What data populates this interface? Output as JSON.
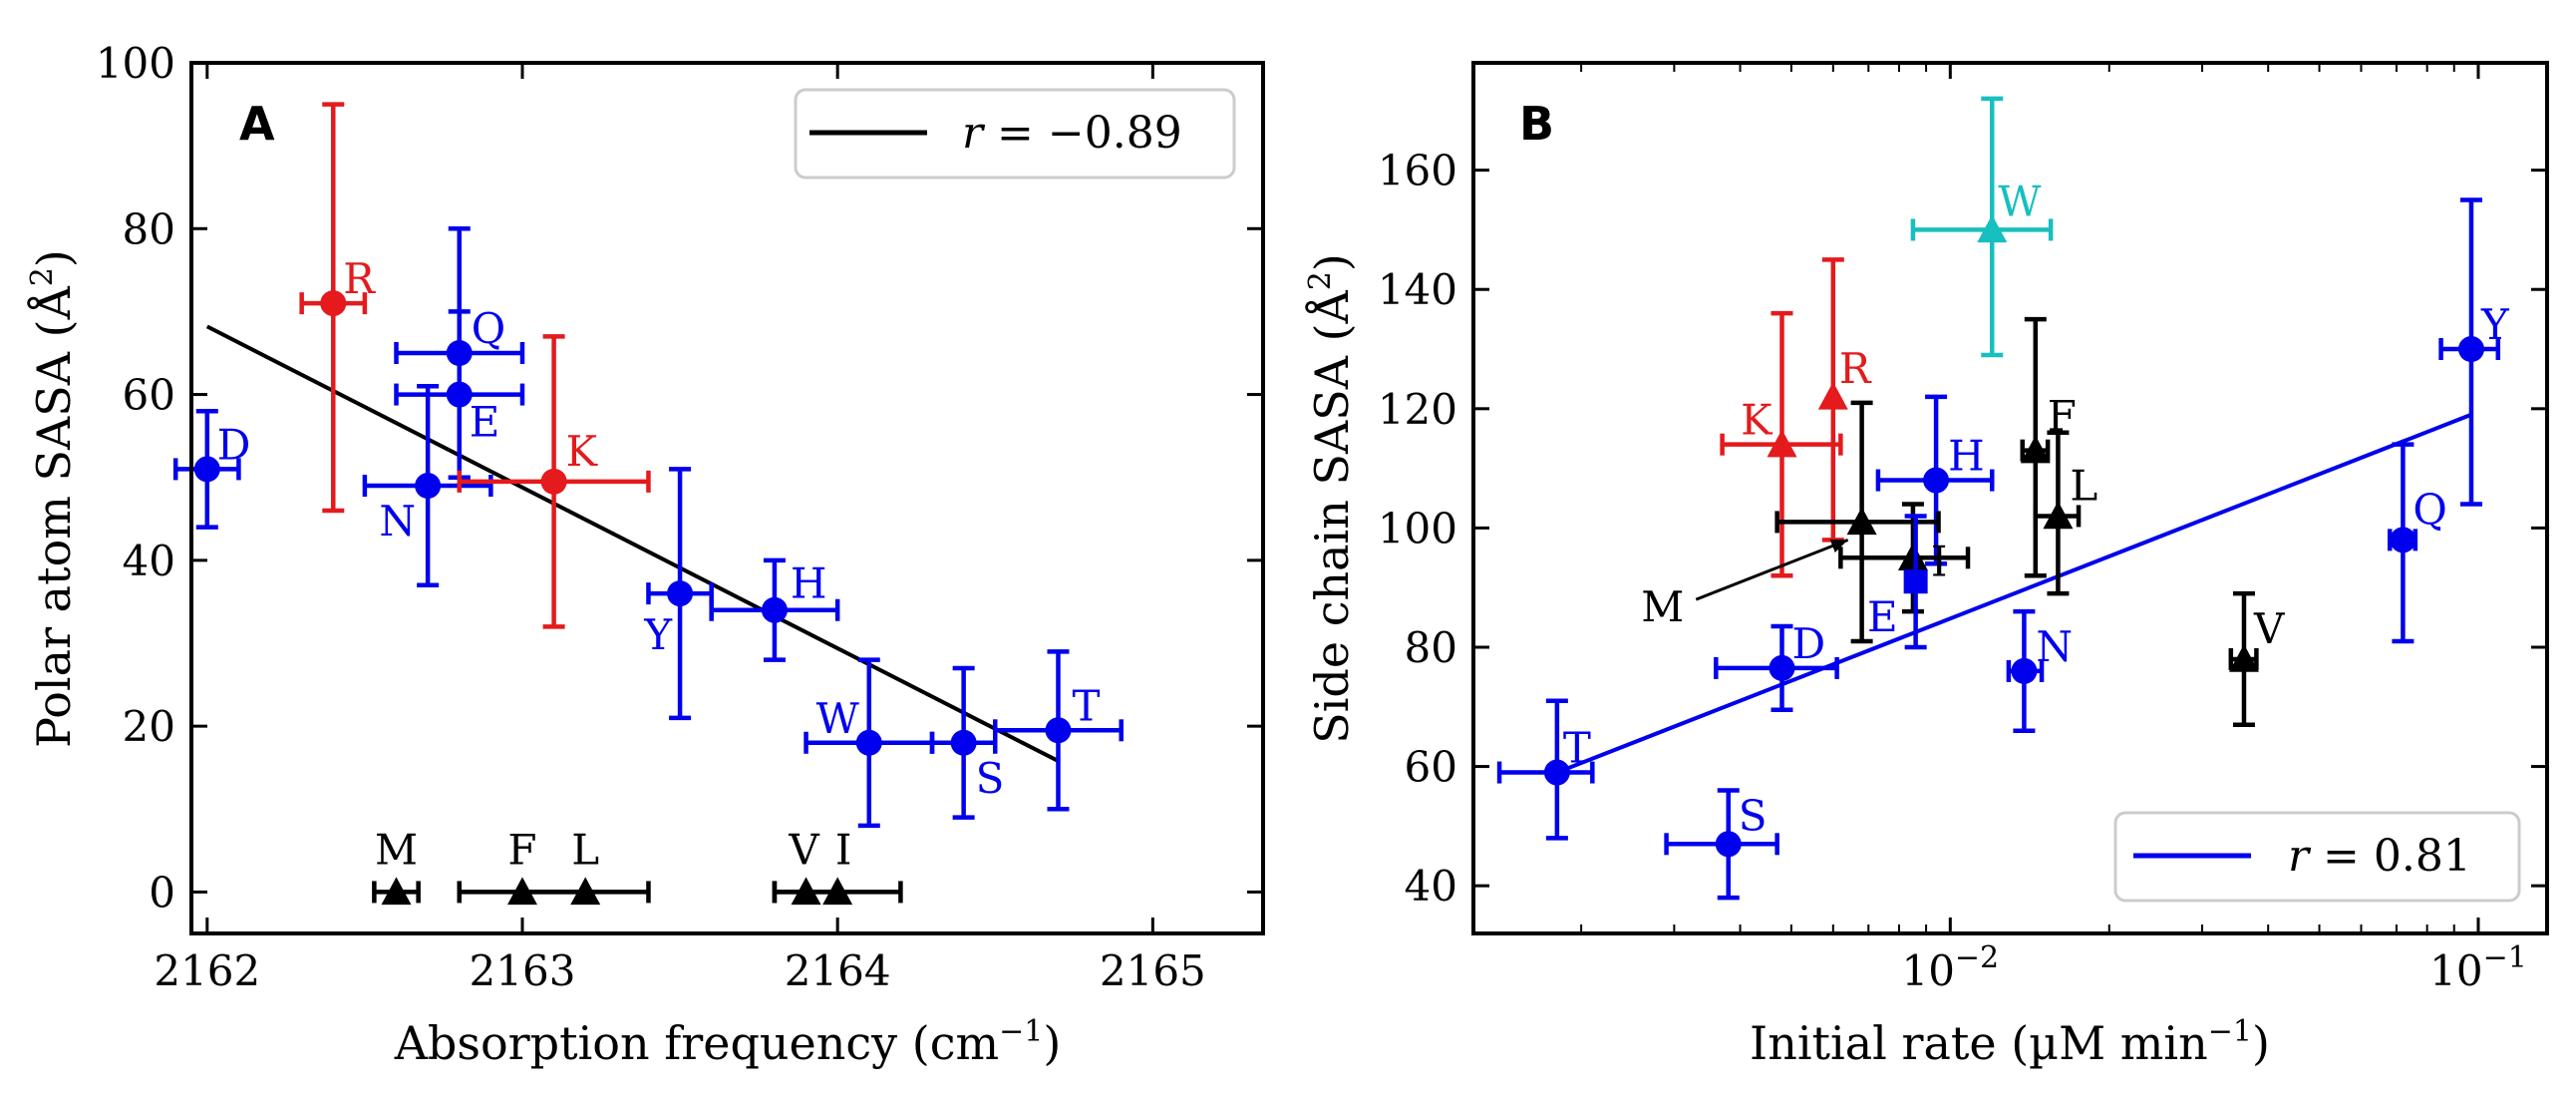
{
  "chart_data": [
    {
      "type": "scatter",
      "panel": "A",
      "xlabel": "Absorption frequency (cm⁻¹)",
      "ylabel": "Polar atom SASA (Å²)",
      "xlim": [
        2161.95,
        2165.35
      ],
      "ylim": [
        -5,
        100
      ],
      "xticks": [
        2162,
        2163,
        2164,
        2165
      ],
      "yticks": [
        0,
        20,
        40,
        60,
        80,
        100
      ],
      "grid": false,
      "legend": {
        "placement": "top-right",
        "entries": [
          {
            "label": "r = −0.89",
            "color": "#000000"
          }
        ]
      },
      "fit_line": {
        "x": [
          2162.0,
          2164.7
        ],
        "y": [
          68.2,
          15.8
        ],
        "color": "#000000"
      },
      "points": [
        {
          "label": "R",
          "x": 2162.4,
          "y": 71,
          "xerr": 0.1,
          "yerr": [
            25,
            24
          ],
          "color": "#e41a1c",
          "marker": "circle"
        },
        {
          "label": "D",
          "x": 2162.0,
          "y": 51,
          "xerr": 0.1,
          "yerr": [
            7,
            7
          ],
          "color": "#0000ee",
          "marker": "circle"
        },
        {
          "label": "Q",
          "x": 2162.8,
          "y": 65,
          "xerr": 0.2,
          "yerr": [
            15,
            15
          ],
          "color": "#0000ee",
          "marker": "circle"
        },
        {
          "label": "E",
          "x": 2162.8,
          "y": 60,
          "xerr": 0.2,
          "yerr": [
            10,
            10
          ],
          "color": "#0000ee",
          "marker": "circle"
        },
        {
          "label": "N",
          "x": 2162.7,
          "y": 49,
          "xerr": 0.2,
          "yerr": [
            12,
            12
          ],
          "color": "#0000ee",
          "marker": "circle"
        },
        {
          "label": "K",
          "x": 2163.1,
          "y": 49.5,
          "xerr": 0.3,
          "yerr": [
            17.5,
            17.5
          ],
          "color": "#e41a1c",
          "marker": "circle"
        },
        {
          "label": "Y",
          "x": 2163.5,
          "y": 36,
          "xerr": 0.1,
          "yerr": [
            15,
            15
          ],
          "color": "#0000ee",
          "marker": "circle"
        },
        {
          "label": "H",
          "x": 2163.8,
          "y": 34,
          "xerr": 0.2,
          "yerr": [
            6,
            6
          ],
          "color": "#0000ee",
          "marker": "circle"
        },
        {
          "label": "W",
          "x": 2164.1,
          "y": 18,
          "xerr": 0.2,
          "yerr": [
            10,
            10
          ],
          "color": "#0000ee",
          "marker": "circle"
        },
        {
          "label": "S",
          "x": 2164.4,
          "y": 18,
          "xerr": 0.1,
          "yerr": [
            9,
            9
          ],
          "color": "#0000ee",
          "marker": "circle"
        },
        {
          "label": "T",
          "x": 2164.7,
          "y": 19.5,
          "xerr": 0.2,
          "yerr": [
            9.5,
            9.5
          ],
          "color": "#0000ee",
          "marker": "circle"
        },
        {
          "label": "M",
          "x": 2162.6,
          "y": 0,
          "xerr": 0.07,
          "yerr": [
            0,
            0
          ],
          "color": "#000000",
          "marker": "triangle"
        },
        {
          "label": "F",
          "x": 2163.0,
          "y": 0,
          "xerr": 0.2,
          "yerr": [
            0,
            0
          ],
          "color": "#000000",
          "marker": "triangle"
        },
        {
          "label": "L",
          "x": 2163.2,
          "y": 0,
          "xerr": 0.2,
          "yerr": [
            0,
            0
          ],
          "color": "#000000",
          "marker": "triangle"
        },
        {
          "label": "V",
          "x": 2163.9,
          "y": 0,
          "xerr": 0.1,
          "yerr": [
            0,
            0
          ],
          "color": "#000000",
          "marker": "triangle"
        },
        {
          "label": "I",
          "x": 2164.0,
          "y": 0,
          "xerr": 0.2,
          "yerr": [
            0,
            0
          ],
          "color": "#000000",
          "marker": "triangle"
        }
      ]
    },
    {
      "type": "scatter",
      "panel": "B",
      "xlabel": "Initial rate (µM min⁻¹)",
      "ylabel": "Side chain SASA (Å²)",
      "xscale": "log",
      "xlim": [
        0.00125,
        0.135
      ],
      "ylim": [
        32,
        178
      ],
      "xticks": [
        0.01,
        0.1
      ],
      "xticklabels": [
        "10⁻²",
        "10⁻¹"
      ],
      "yticks": [
        40,
        60,
        80,
        100,
        120,
        140,
        160
      ],
      "grid": false,
      "legend": {
        "placement": "bottom-right",
        "entries": [
          {
            "label": "r = 0.81",
            "color": "#0000ee"
          }
        ]
      },
      "fit_line": {
        "x": [
          0.0018,
          0.097
        ],
        "y": [
          59,
          119
        ],
        "color": "#0000ee"
      },
      "annotation": {
        "text": "M",
        "arrow_from": [
          0.0033,
          88
        ],
        "arrow_to": [
          0.0064,
          98
        ]
      },
      "points": [
        {
          "label": "W",
          "x": 0.012,
          "y": 150,
          "xerr": [
            0.0035,
            0.0035
          ],
          "yerr": [
            21,
            22
          ],
          "color": "#17bfbf",
          "marker": "triangle"
        },
        {
          "label": "Y",
          "x": 0.097,
          "y": 130,
          "xerr": [
            0.012,
            0.012
          ],
          "yerr": [
            26,
            25
          ],
          "color": "#0000ee",
          "marker": "circle"
        },
        {
          "label": "K",
          "x": 0.0048,
          "y": 114,
          "xerr": [
            0.0011,
            0.0014
          ],
          "yerr": [
            22,
            22
          ],
          "color": "#e41a1c",
          "marker": "triangle"
        },
        {
          "label": "R",
          "x": 0.006,
          "y": 122,
          "xerr": [
            0,
            0
          ],
          "yerr": [
            24,
            23
          ],
          "color": "#e41a1c",
          "marker": "triangle"
        },
        {
          "label": "H",
          "x": 0.0094,
          "y": 108,
          "xerr": [
            0.0021,
            0.0026
          ],
          "yerr": [
            14,
            14
          ],
          "color": "#0000ee",
          "marker": "circle"
        },
        {
          "label": "F",
          "x": 0.0145,
          "y": 113,
          "xerr": [
            0.0008,
            0.0008
          ],
          "yerr": [
            21,
            22
          ],
          "color": "#000000",
          "marker": "triangle"
        },
        {
          "label": "L",
          "x": 0.016,
          "y": 102,
          "xerr": [
            0.0015,
            0.0015
          ],
          "yerr": [
            13,
            14
          ],
          "color": "#000000",
          "marker": "triangle"
        },
        {
          "label": "M",
          "x": 0.0068,
          "y": 101,
          "xerr": [
            0.0021,
            0.0027
          ],
          "yerr": [
            20,
            20
          ],
          "color": "#000000",
          "marker": "triangle"
        },
        {
          "label": "I",
          "x": 0.0085,
          "y": 95,
          "xerr": [
            0.0023,
            0.0023
          ],
          "yerr": [
            9,
            9
          ],
          "color": "#000000",
          "marker": "triangle"
        },
        {
          "label": "E",
          "x": 0.0086,
          "y": 91,
          "xerr": [
            0,
            0
          ],
          "yerr": [
            11,
            11
          ],
          "color": "#0000ee",
          "marker": "square"
        },
        {
          "label": "Q",
          "x": 0.072,
          "y": 98,
          "xerr": [
            0.004,
            0.004
          ],
          "yerr": [
            17,
            16
          ],
          "color": "#0000ee",
          "marker": "circle"
        },
        {
          "label": "V",
          "x": 0.036,
          "y": 78,
          "xerr": [
            0.002,
            0.002
          ],
          "yerr": [
            11,
            11
          ],
          "color": "#000000",
          "marker": "triangle"
        },
        {
          "label": "N",
          "x": 0.0138,
          "y": 76,
          "xerr": [
            0.0009,
            0.0011
          ],
          "yerr": [
            10,
            10
          ],
          "color": "#0000ee",
          "marker": "circle"
        },
        {
          "label": "D",
          "x": 0.0048,
          "y": 76.5,
          "xerr": [
            0.0012,
            0.0013
          ],
          "yerr": [
            7,
            7
          ],
          "color": "#0000ee",
          "marker": "circle"
        },
        {
          "label": "T",
          "x": 0.0018,
          "y": 59,
          "xerr": [
            0.0004,
            0.0003
          ],
          "yerr": [
            11,
            12
          ],
          "color": "#0000ee",
          "marker": "circle"
        },
        {
          "label": "S",
          "x": 0.0038,
          "y": 47,
          "xerr": [
            0.0009,
            0.0009
          ],
          "yerr": [
            9,
            9
          ],
          "color": "#0000ee",
          "marker": "circle"
        }
      ]
    }
  ]
}
